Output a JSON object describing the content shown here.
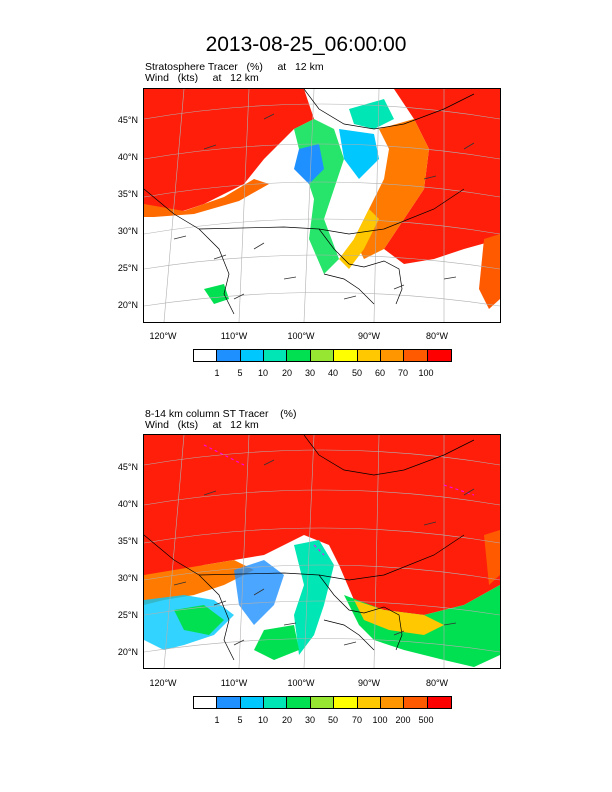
{
  "title": "2013-08-25_06:00:00",
  "panels": [
    {
      "line1": "Stratosphere Tracer   (%)     at   12 km",
      "line2": "Wind   (kts)     at   12 km",
      "lat_labels": [
        "45°N",
        "40°N",
        "35°N",
        "30°N",
        "25°N",
        "20°N"
      ],
      "lon_labels": [
        "120°W",
        "110°W",
        "100°W",
        "90°W",
        "80°W"
      ],
      "colorbar_labels": [
        "1",
        "5",
        "10",
        "20",
        "30",
        "40",
        "50",
        "60",
        "70",
        "100"
      ],
      "colorbar_colors": [
        "#ffffff",
        "#1e90ff",
        "#00c8ff",
        "#00e6b4",
        "#00e050",
        "#96e632",
        "#ffff00",
        "#ffc800",
        "#ff9600",
        "#ff5a00",
        "#ff0000"
      ]
    },
    {
      "line1": "8-14 km column ST Tracer    (%)",
      "line2": "Wind   (kts)     at   12 km",
      "lat_labels": [
        "45°N",
        "40°N",
        "35°N",
        "30°N",
        "25°N",
        "20°N"
      ],
      "lon_labels": [
        "120°W",
        "110°W",
        "100°W",
        "90°W",
        "80°W"
      ],
      "colorbar_labels": [
        "1",
        "5",
        "10",
        "20",
        "30",
        "50",
        "70",
        "100",
        "200",
        "500"
      ],
      "colorbar_colors": [
        "#ffffff",
        "#1e90ff",
        "#00c8ff",
        "#00e6b4",
        "#00e050",
        "#96e632",
        "#ffff00",
        "#ffc800",
        "#ff9600",
        "#ff5a00",
        "#ff0000"
      ]
    }
  ]
}
